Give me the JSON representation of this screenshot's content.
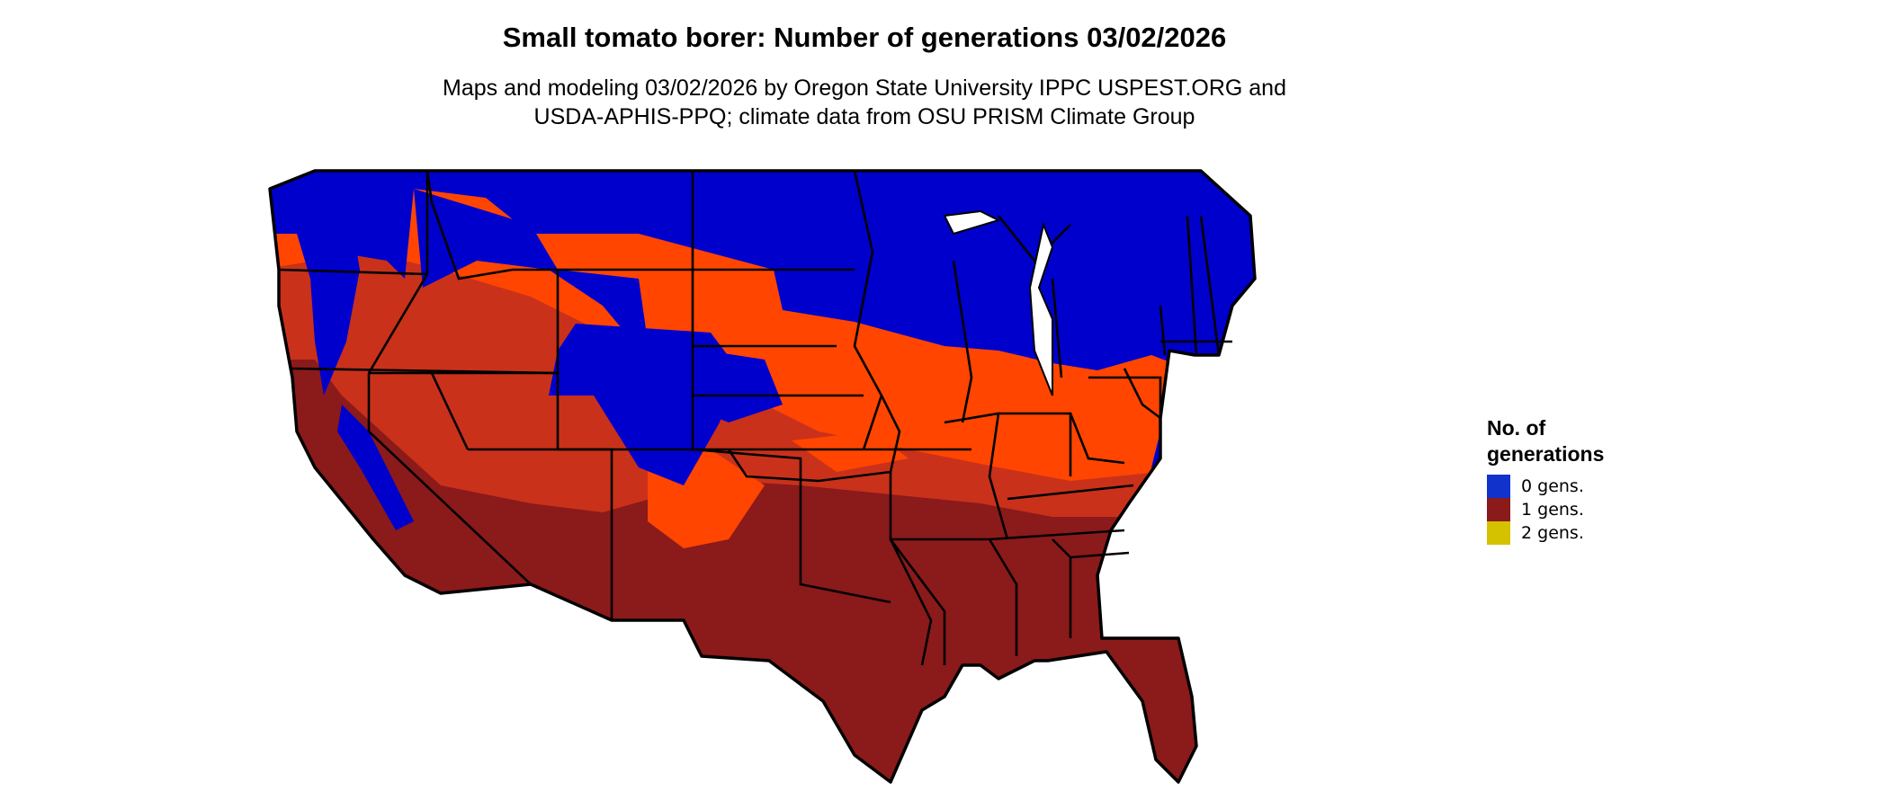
{
  "title": "Small tomato borer: Number of generations 03/02/2026",
  "subtitle_lines": [
    "Maps and modeling 03/02/2026 by Oregon State University IPPC USPEST.ORG and",
    "USDA-APHIS-PPQ; climate data from OSU PRISM Climate Group"
  ],
  "colors": {
    "zero_gens": "#0000cc",
    "one_gen_light": "#ff4500",
    "one_gen_mid": "#c9311b",
    "one_gen_dark": "#8b1a1a",
    "two_gens": "#d4c100"
  },
  "legend": {
    "title": "No. of generations",
    "items": [
      {
        "label": "0 gens.",
        "color": "#1133cc"
      },
      {
        "label": "1 gens.",
        "color": "#8b1a1a"
      },
      {
        "label": "2 gens.",
        "color": "#d4c100"
      }
    ]
  }
}
